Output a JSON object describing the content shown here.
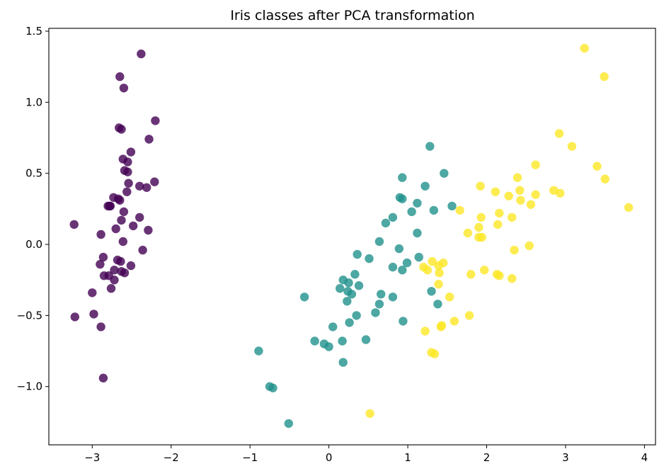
{
  "chart_data": {
    "type": "scatter",
    "title": "Iris classes after PCA transformation",
    "xlabel": "",
    "ylabel": "",
    "xlim": [
      -3.55,
      4.14
    ],
    "ylim": [
      -1.41,
      1.52
    ],
    "x_ticks": [
      -3,
      -2,
      -1,
      0,
      1,
      2,
      3,
      4
    ],
    "y_ticks": [
      -1.0,
      -0.5,
      0.0,
      0.5,
      1.0,
      1.5
    ],
    "x_tick_labels": [
      "−3",
      "−2",
      "−1",
      "0",
      "1",
      "2",
      "3",
      "4"
    ],
    "y_tick_labels": [
      "−1.0",
      "−0.5",
      "0.0",
      "0.5",
      "1.0",
      "1.5"
    ],
    "grid": false,
    "series": [
      {
        "color": "#440154",
        "points": [
          [
            -2.38,
            1.34
          ],
          [
            -2.65,
            1.18
          ],
          [
            -2.6,
            1.1
          ],
          [
            -2.2,
            0.87
          ],
          [
            -2.66,
            0.82
          ],
          [
            -2.63,
            0.81
          ],
          [
            -2.28,
            0.74
          ],
          [
            -2.51,
            0.65
          ],
          [
            -2.61,
            0.6
          ],
          [
            -2.55,
            0.58
          ],
          [
            -2.59,
            0.52
          ],
          [
            -2.55,
            0.51
          ],
          [
            -2.21,
            0.44
          ],
          [
            -2.54,
            0.43
          ],
          [
            -2.4,
            0.41
          ],
          [
            -2.31,
            0.4
          ],
          [
            -2.56,
            0.37
          ],
          [
            -2.73,
            0.33
          ],
          [
            -2.67,
            0.32
          ],
          [
            -2.65,
            0.31
          ],
          [
            -2.78,
            0.27
          ],
          [
            -2.8,
            0.27
          ],
          [
            -2.6,
            0.23
          ],
          [
            -2.4,
            0.19
          ],
          [
            -2.63,
            0.17
          ],
          [
            -3.23,
            0.14
          ],
          [
            -2.48,
            0.13
          ],
          [
            -2.29,
            0.1
          ],
          [
            -2.7,
            0.11
          ],
          [
            -2.89,
            0.07
          ],
          [
            -2.61,
            0.02
          ],
          [
            -2.36,
            -0.04
          ],
          [
            -2.86,
            -0.09
          ],
          [
            -2.68,
            -0.11
          ],
          [
            -2.64,
            -0.12
          ],
          [
            -2.9,
            -0.14
          ],
          [
            -2.51,
            -0.15
          ],
          [
            -2.72,
            -0.18
          ],
          [
            -2.63,
            -0.19
          ],
          [
            -2.59,
            -0.2
          ],
          [
            -2.85,
            -0.22
          ],
          [
            -2.79,
            -0.22
          ],
          [
            -2.72,
            -0.25
          ],
          [
            -2.76,
            -0.31
          ],
          [
            -3.0,
            -0.34
          ],
          [
            -2.98,
            -0.49
          ],
          [
            -3.22,
            -0.51
          ],
          [
            -2.89,
            -0.58
          ],
          [
            -2.86,
            -0.94
          ],
          [
            -2.77,
            0.27
          ]
        ]
      },
      {
        "color": "#21918c",
        "points": [
          [
            1.28,
            0.69
          ],
          [
            1.46,
            0.5
          ],
          [
            0.93,
            0.47
          ],
          [
            1.22,
            0.41
          ],
          [
            0.9,
            0.33
          ],
          [
            0.93,
            0.32
          ],
          [
            1.12,
            0.29
          ],
          [
            1.56,
            0.27
          ],
          [
            1.33,
            0.24
          ],
          [
            1.05,
            0.23
          ],
          [
            0.81,
            0.19
          ],
          [
            0.72,
            0.15
          ],
          [
            1.12,
            0.08
          ],
          [
            0.64,
            0.02
          ],
          [
            0.89,
            -0.03
          ],
          [
            0.36,
            -0.07
          ],
          [
            1.14,
            -0.09
          ],
          [
            0.51,
            -0.1
          ],
          [
            0.99,
            -0.13
          ],
          [
            0.81,
            -0.16
          ],
          [
            0.93,
            -0.18
          ],
          [
            0.33,
            -0.21
          ],
          [
            0.18,
            -0.25
          ],
          [
            0.25,
            -0.27
          ],
          [
            0.38,
            -0.29
          ],
          [
            0.14,
            -0.31
          ],
          [
            0.24,
            -0.33
          ],
          [
            0.29,
            -0.35
          ],
          [
            1.3,
            -0.33
          ],
          [
            0.66,
            -0.35
          ],
          [
            0.81,
            -0.37
          ],
          [
            -0.31,
            -0.37
          ],
          [
            0.23,
            -0.4
          ],
          [
            0.64,
            -0.42
          ],
          [
            1.38,
            -0.42
          ],
          [
            0.59,
            -0.48
          ],
          [
            0.35,
            -0.5
          ],
          [
            0.94,
            -0.54
          ],
          [
            0.26,
            -0.55
          ],
          [
            0.05,
            -0.58
          ],
          [
            0.47,
            -0.67
          ],
          [
            -0.18,
            -0.68
          ],
          [
            0.17,
            -0.68
          ],
          [
            -0.06,
            -0.7
          ],
          [
            0.0,
            -0.72
          ],
          [
            -0.89,
            -0.75
          ],
          [
            0.18,
            -0.83
          ],
          [
            -0.75,
            -1.0
          ],
          [
            -0.71,
            -1.01
          ],
          [
            -0.51,
            -1.26
          ]
        ]
      },
      {
        "color": "#fde725",
        "points": [
          [
            3.24,
            1.38
          ],
          [
            3.49,
            1.18
          ],
          [
            2.92,
            0.78
          ],
          [
            3.08,
            0.69
          ],
          [
            2.62,
            0.56
          ],
          [
            3.4,
            0.55
          ],
          [
            2.39,
            0.47
          ],
          [
            3.5,
            0.46
          ],
          [
            1.92,
            0.41
          ],
          [
            2.11,
            0.37
          ],
          [
            2.42,
            0.38
          ],
          [
            2.85,
            0.38
          ],
          [
            2.93,
            0.36
          ],
          [
            2.62,
            0.35
          ],
          [
            2.28,
            0.34
          ],
          [
            2.43,
            0.31
          ],
          [
            2.56,
            0.28
          ],
          [
            3.8,
            0.26
          ],
          [
            1.66,
            0.24
          ],
          [
            2.16,
            0.22
          ],
          [
            1.93,
            0.19
          ],
          [
            2.32,
            0.19
          ],
          [
            2.14,
            0.14
          ],
          [
            1.9,
            0.12
          ],
          [
            1.76,
            0.08
          ],
          [
            1.9,
            0.05
          ],
          [
            1.94,
            0.05
          ],
          [
            2.54,
            -0.01
          ],
          [
            2.35,
            -0.04
          ],
          [
            1.31,
            -0.12
          ],
          [
            1.45,
            -0.13
          ],
          [
            1.39,
            -0.15
          ],
          [
            1.2,
            -0.16
          ],
          [
            1.25,
            -0.18
          ],
          [
            1.97,
            -0.18
          ],
          [
            2.13,
            -0.21
          ],
          [
            2.16,
            -0.22
          ],
          [
            1.4,
            -0.2
          ],
          [
            1.8,
            -0.21
          ],
          [
            2.32,
            -0.24
          ],
          [
            1.39,
            -0.28
          ],
          [
            1.53,
            -0.37
          ],
          [
            1.78,
            -0.5
          ],
          [
            1.59,
            -0.54
          ],
          [
            1.43,
            -0.57
          ],
          [
            1.42,
            -0.58
          ],
          [
            1.22,
            -0.61
          ],
          [
            1.3,
            -0.76
          ],
          [
            1.34,
            -0.77
          ],
          [
            0.52,
            -1.19
          ]
        ]
      }
    ]
  }
}
